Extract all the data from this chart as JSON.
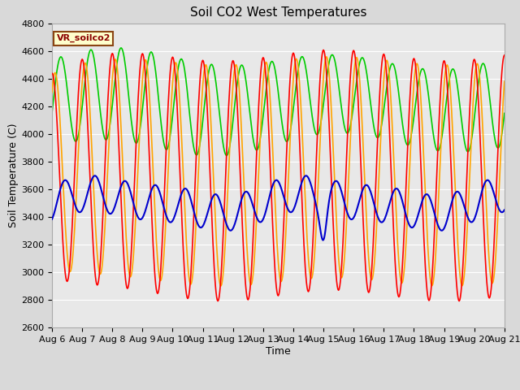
{
  "title": "Soil CO2 West Temperatures",
  "xlabel": "Time",
  "ylabel": "Soil Temperature (C)",
  "ylim": [
    2600,
    4800
  ],
  "x_tick_labels": [
    "Aug 6",
    "Aug 7",
    "Aug 8",
    "Aug 9",
    "Aug 10",
    "Aug 11",
    "Aug 12",
    "Aug 13",
    "Aug 14",
    "Aug 15",
    "Aug 16",
    "Aug 17",
    "Aug 18",
    "Aug 19",
    "Aug 20",
    "Aug 21"
  ],
  "series_colors": {
    "TCW_1": "#ff0000",
    "TCW_2": "#ffa500",
    "TCW_3": "#00cc00",
    "TCW_4": "#0000cd"
  },
  "legend_label": "VR_soilco2",
  "fig_bg_color": "#d9d9d9",
  "plot_bg_color": "#e8e8e8",
  "title_fontsize": 11,
  "axis_label_fontsize": 9,
  "tick_fontsize": 8,
  "tcw1_base": 3700,
  "tcw1_amp": 870,
  "tcw1_phase": 1.57,
  "tcw2_base": 3730,
  "tcw2_amp": 800,
  "tcw2_phase": 0.95,
  "tcw3_base": 4230,
  "tcw3_amp": 310,
  "tcw3_phase": -0.25,
  "tcw4_base": 3500,
  "tcw4_amp": 130,
  "tcw4_phase": -1.1
}
